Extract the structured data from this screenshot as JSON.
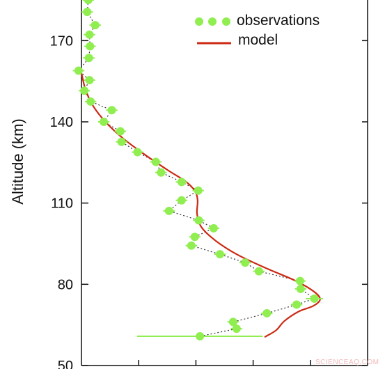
{
  "chart_data": {
    "type": "line",
    "xlabel": "",
    "ylabel": "Altitude (km)",
    "ylim": [
      50,
      185
    ],
    "xlim": [
      0,
      5
    ],
    "x_ticks": [
      1,
      2,
      3,
      4
    ],
    "y_ticks": [
      50,
      80,
      110,
      140,
      170
    ],
    "y_tick_labels": [
      "50",
      "80",
      "110",
      "140",
      "170"
    ],
    "grid": false,
    "legend_position": "top-right",
    "colors": {
      "observations": "#90ee50",
      "model": "#cc2a14",
      "connector": "#333333"
    },
    "series": [
      {
        "name": "observations",
        "style": "markers-with-dotted-connector",
        "points": [
          {
            "x": 0.12,
            "y": 185.0,
            "xerr": 0.1
          },
          {
            "x": 0.1,
            "y": 180.6,
            "xerr": 0.1
          },
          {
            "x": 0.24,
            "y": 175.7,
            "xerr": 0.1
          },
          {
            "x": 0.14,
            "y": 172.2,
            "xerr": 0.1
          },
          {
            "x": 0.15,
            "y": 167.9,
            "xerr": 0.1
          },
          {
            "x": 0.13,
            "y": 163.6,
            "xerr": 0.1
          },
          {
            "x": -0.05,
            "y": 158.9,
            "xerr": 0.1
          },
          {
            "x": 0.14,
            "y": 155.4,
            "xerr": 0.1
          },
          {
            "x": 0.05,
            "y": 151.5,
            "xerr": 0.1
          },
          {
            "x": 0.16,
            "y": 147.5,
            "xerr": 0.1
          },
          {
            "x": 0.53,
            "y": 144.3,
            "xerr": 0.1
          },
          {
            "x": 0.39,
            "y": 140.0,
            "xerr": 0.1
          },
          {
            "x": 0.68,
            "y": 136.5,
            "xerr": 0.1
          },
          {
            "x": 0.7,
            "y": 132.6,
            "xerr": 0.1
          },
          {
            "x": 0.98,
            "y": 128.8,
            "xerr": 0.1
          },
          {
            "x": 1.3,
            "y": 125.2,
            "xerr": 0.1
          },
          {
            "x": 1.39,
            "y": 121.3,
            "xerr": 0.1
          },
          {
            "x": 1.75,
            "y": 117.8,
            "xerr": 0.1
          },
          {
            "x": 2.04,
            "y": 114.6,
            "xerr": 0.1
          },
          {
            "x": 1.75,
            "y": 111.0,
            "xerr": 0.1
          },
          {
            "x": 1.53,
            "y": 107.1,
            "xerr": 0.1
          },
          {
            "x": 2.05,
            "y": 103.6,
            "xerr": 0.1
          },
          {
            "x": 2.31,
            "y": 100.7,
            "xerr": 0.1
          },
          {
            "x": 1.98,
            "y": 97.5,
            "xerr": 0.1
          },
          {
            "x": 1.92,
            "y": 94.3,
            "xerr": 0.1
          },
          {
            "x": 2.42,
            "y": 91.1,
            "xerr": 0.1
          },
          {
            "x": 2.86,
            "y": 88.0,
            "xerr": 0.1
          },
          {
            "x": 3.1,
            "y": 84.8,
            "xerr": 0.1
          },
          {
            "x": 3.82,
            "y": 81.2,
            "xerr": 0.1
          },
          {
            "x": 3.83,
            "y": 78.3,
            "xerr": 0.1
          },
          {
            "x": 4.07,
            "y": 74.7,
            "xerr": 0.15
          },
          {
            "x": 3.76,
            "y": 72.5,
            "xerr": 0.1
          },
          {
            "x": 3.24,
            "y": 69.3,
            "xerr": 0.1
          },
          {
            "x": 2.65,
            "y": 66.1,
            "xerr": 0.1
          },
          {
            "x": 2.71,
            "y": 63.6,
            "xerr": 0.1
          },
          {
            "x": 2.07,
            "y": 60.8,
            "xerr": 1.1
          }
        ]
      },
      {
        "name": "model",
        "style": "solid-line",
        "points": [
          {
            "x": 0.0,
            "y": 158.0
          },
          {
            "x": 0.07,
            "y": 152.0
          },
          {
            "x": 0.2,
            "y": 146.0
          },
          {
            "x": 0.42,
            "y": 140.0
          },
          {
            "x": 0.72,
            "y": 134.0
          },
          {
            "x": 1.1,
            "y": 128.0
          },
          {
            "x": 1.52,
            "y": 122.0
          },
          {
            "x": 1.82,
            "y": 118.0
          },
          {
            "x": 1.98,
            "y": 114.5
          },
          {
            "x": 2.03,
            "y": 111.0
          },
          {
            "x": 2.02,
            "y": 106.0
          },
          {
            "x": 2.1,
            "y": 101.0
          },
          {
            "x": 2.35,
            "y": 96.0
          },
          {
            "x": 2.72,
            "y": 91.0
          },
          {
            "x": 3.22,
            "y": 86.0
          },
          {
            "x": 3.72,
            "y": 81.5
          },
          {
            "x": 4.05,
            "y": 77.5
          },
          {
            "x": 4.17,
            "y": 74.5
          },
          {
            "x": 4.05,
            "y": 72.0
          },
          {
            "x": 3.8,
            "y": 70.0
          },
          {
            "x": 3.55,
            "y": 66.5
          },
          {
            "x": 3.4,
            "y": 63.0
          },
          {
            "x": 3.2,
            "y": 60.5
          }
        ]
      }
    ]
  },
  "watermark": "SCIENCEAQ.COM"
}
